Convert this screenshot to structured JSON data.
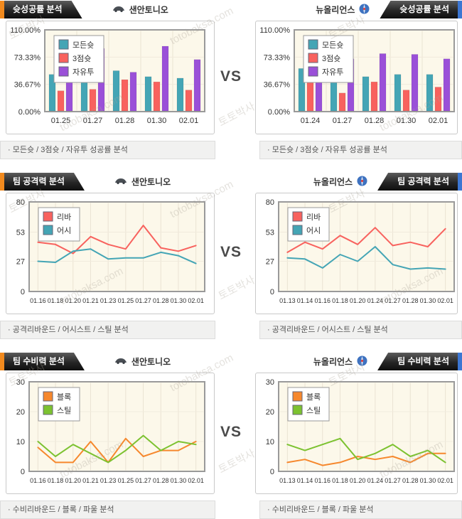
{
  "teams": {
    "left": "샌안토니오",
    "right": "뉴올리언스"
  },
  "vs_label": "VS",
  "watermark": {
    "korean": "토토박사",
    "domain": "totobaksa.com"
  },
  "colors": {
    "accent_orange": "#F28A1E",
    "accent_blue": "#3C76D2",
    "all_shots_teal": "#44A5B5",
    "three_point_red": "#F8625E",
    "free_throw_purple": "#9A50D8",
    "block_orange": "#F6882D",
    "steal_green": "#7CC230",
    "plot_background": "#FCF8EA"
  },
  "sections": [
    {
      "title": "슛성공률 분석",
      "footer": "· 모든슛 / 3점슛 / 자유투 성공률 분석"
    },
    {
      "title": "팀 공격력 분석",
      "footer": "· 공격리바운드 / 어시스트 / 스틸 분석"
    },
    {
      "title": "팀 수비력 분석",
      "footer": "· 수비리바운드 / 블록 / 파울 분석"
    }
  ],
  "chart_data": [
    {
      "type": "bar",
      "team": "샌안토니오",
      "title": "슛성공률 분석",
      "categories": [
        "01.25",
        "01.27",
        "01.28",
        "01.30",
        "02.01"
      ],
      "series": [
        {
          "name": "모든슛",
          "color": "#44A5B5",
          "values": [
            50,
            46,
            55,
            47,
            45
          ]
        },
        {
          "name": "3점슛",
          "color": "#F8625E",
          "values": [
            28,
            30,
            43,
            40,
            29
          ]
        },
        {
          "name": "자유투",
          "color": "#9A50D8",
          "values": [
            59,
            85,
            53,
            88,
            70
          ]
        }
      ],
      "ylim": [
        0,
        110
      ],
      "yticks": [
        {
          "value": 0,
          "label": "0.00%"
        },
        {
          "value": 36.67,
          "label": "36.67%"
        },
        {
          "value": 73.33,
          "label": "73.33%"
        },
        {
          "value": 110,
          "label": "110.00%"
        }
      ],
      "margin_left": 52,
      "legend_position": "top-left",
      "grid": "vertical"
    },
    {
      "type": "bar",
      "team": "뉴올리언스",
      "title": "슛성공률 분석",
      "categories": [
        "01.24",
        "01.27",
        "01.28",
        "01.30",
        "02.01"
      ],
      "series": [
        {
          "name": "모든슛",
          "color": "#44A5B5",
          "values": [
            58,
            39,
            47,
            50,
            50
          ]
        },
        {
          "name": "3점슛",
          "color": "#F8625E",
          "values": [
            50,
            25,
            40,
            29,
            33
          ]
        },
        {
          "name": "자유투",
          "color": "#9A50D8",
          "values": [
            59,
            71,
            78,
            77,
            71
          ]
        }
      ],
      "ylim": [
        0,
        110
      ],
      "yticks": [
        {
          "value": 0,
          "label": "0.00%"
        },
        {
          "value": 36.67,
          "label": "36.67%"
        },
        {
          "value": 73.33,
          "label": "73.33%"
        },
        {
          "value": 110,
          "label": "110.00%"
        }
      ],
      "margin_left": 52,
      "legend_position": "top-left",
      "grid": "vertical"
    },
    {
      "type": "line",
      "team": "샌안토니오",
      "title": "팀 공격력 분석",
      "categories": [
        "01.16",
        "01.18",
        "01.20",
        "01.21",
        "01.23",
        "01.25",
        "01.27",
        "01.28",
        "01.30",
        "02.01"
      ],
      "series": [
        {
          "name": "리바",
          "color": "#F8625E",
          "values": [
            44,
            42,
            34,
            49,
            42,
            38,
            59,
            39,
            36,
            41
          ]
        },
        {
          "name": "어시",
          "color": "#44A5B5",
          "values": [
            27,
            26,
            36,
            38,
            29,
            30,
            30,
            35,
            32,
            25
          ]
        }
      ],
      "ylim": [
        0,
        80
      ],
      "yticks": [
        {
          "value": 0,
          "label": "0"
        },
        {
          "value": 27,
          "label": "27"
        },
        {
          "value": 53,
          "label": "53"
        },
        {
          "value": 80,
          "label": "80"
        }
      ],
      "margin_left": 30,
      "legend_position": "top-left",
      "grid": "vertical"
    },
    {
      "type": "line",
      "team": "뉴올리언스",
      "title": "팀 공격력 분석",
      "categories": [
        "01.13",
        "01.14",
        "01.16",
        "01.18",
        "01.20",
        "01.24",
        "01.27",
        "01.28",
        "01.30",
        "02.01"
      ],
      "series": [
        {
          "name": "리바",
          "color": "#F8625E",
          "values": [
            35,
            44,
            38,
            50,
            42,
            57,
            41,
            44,
            40,
            56
          ]
        },
        {
          "name": "어시",
          "color": "#44A5B5",
          "values": [
            30,
            29,
            21,
            33,
            27,
            40,
            24,
            20,
            21,
            20
          ]
        }
      ],
      "ylim": [
        0,
        80
      ],
      "yticks": [
        {
          "value": 0,
          "label": "0"
        },
        {
          "value": 27,
          "label": "27"
        },
        {
          "value": 53,
          "label": "53"
        },
        {
          "value": 80,
          "label": "80"
        }
      ],
      "margin_left": 30,
      "legend_position": "top-left",
      "grid": "vertical"
    },
    {
      "type": "line",
      "team": "샌안토니오",
      "title": "팀 수비력 분석",
      "categories": [
        "01.16",
        "01.18",
        "01.20",
        "01.21",
        "01.23",
        "01.25",
        "01.27",
        "01.28",
        "01.30",
        "02.01"
      ],
      "series": [
        {
          "name": "블록",
          "color": "#F6882D",
          "values": [
            8,
            3,
            3,
            10,
            3,
            11,
            5,
            7,
            7,
            10
          ]
        },
        {
          "name": "스틸",
          "color": "#7CC230",
          "values": [
            10,
            5,
            9,
            6,
            3,
            7,
            12,
            7,
            10,
            9
          ]
        }
      ],
      "ylim": [
        0,
        30
      ],
      "yticks": [
        {
          "value": 0,
          "label": "0"
        },
        {
          "value": 10,
          "label": "10"
        },
        {
          "value": 20,
          "label": "20"
        },
        {
          "value": 30,
          "label": "30"
        }
      ],
      "margin_left": 30,
      "legend_position": "top-left",
      "grid": "vertical"
    },
    {
      "type": "line",
      "team": "뉴올리언스",
      "title": "팀 수비력 분석",
      "categories": [
        "01.13",
        "01.14",
        "01.16",
        "01.18",
        "01.20",
        "01.24",
        "01.27",
        "01.28",
        "01.30",
        "02.01"
      ],
      "series": [
        {
          "name": "블록",
          "color": "#F6882D",
          "values": [
            3,
            4,
            2,
            3,
            5,
            4,
            5,
            3,
            6,
            6
          ]
        },
        {
          "name": "스틸",
          "color": "#7CC230",
          "values": [
            9,
            7,
            9,
            11,
            4,
            6,
            9,
            5,
            7,
            3
          ]
        }
      ],
      "ylim": [
        0,
        30
      ],
      "yticks": [
        {
          "value": 0,
          "label": "0"
        },
        {
          "value": 10,
          "label": "10"
        },
        {
          "value": 20,
          "label": "20"
        },
        {
          "value": 30,
          "label": "30"
        }
      ],
      "margin_left": 30,
      "legend_position": "top-left",
      "grid": "vertical"
    }
  ]
}
